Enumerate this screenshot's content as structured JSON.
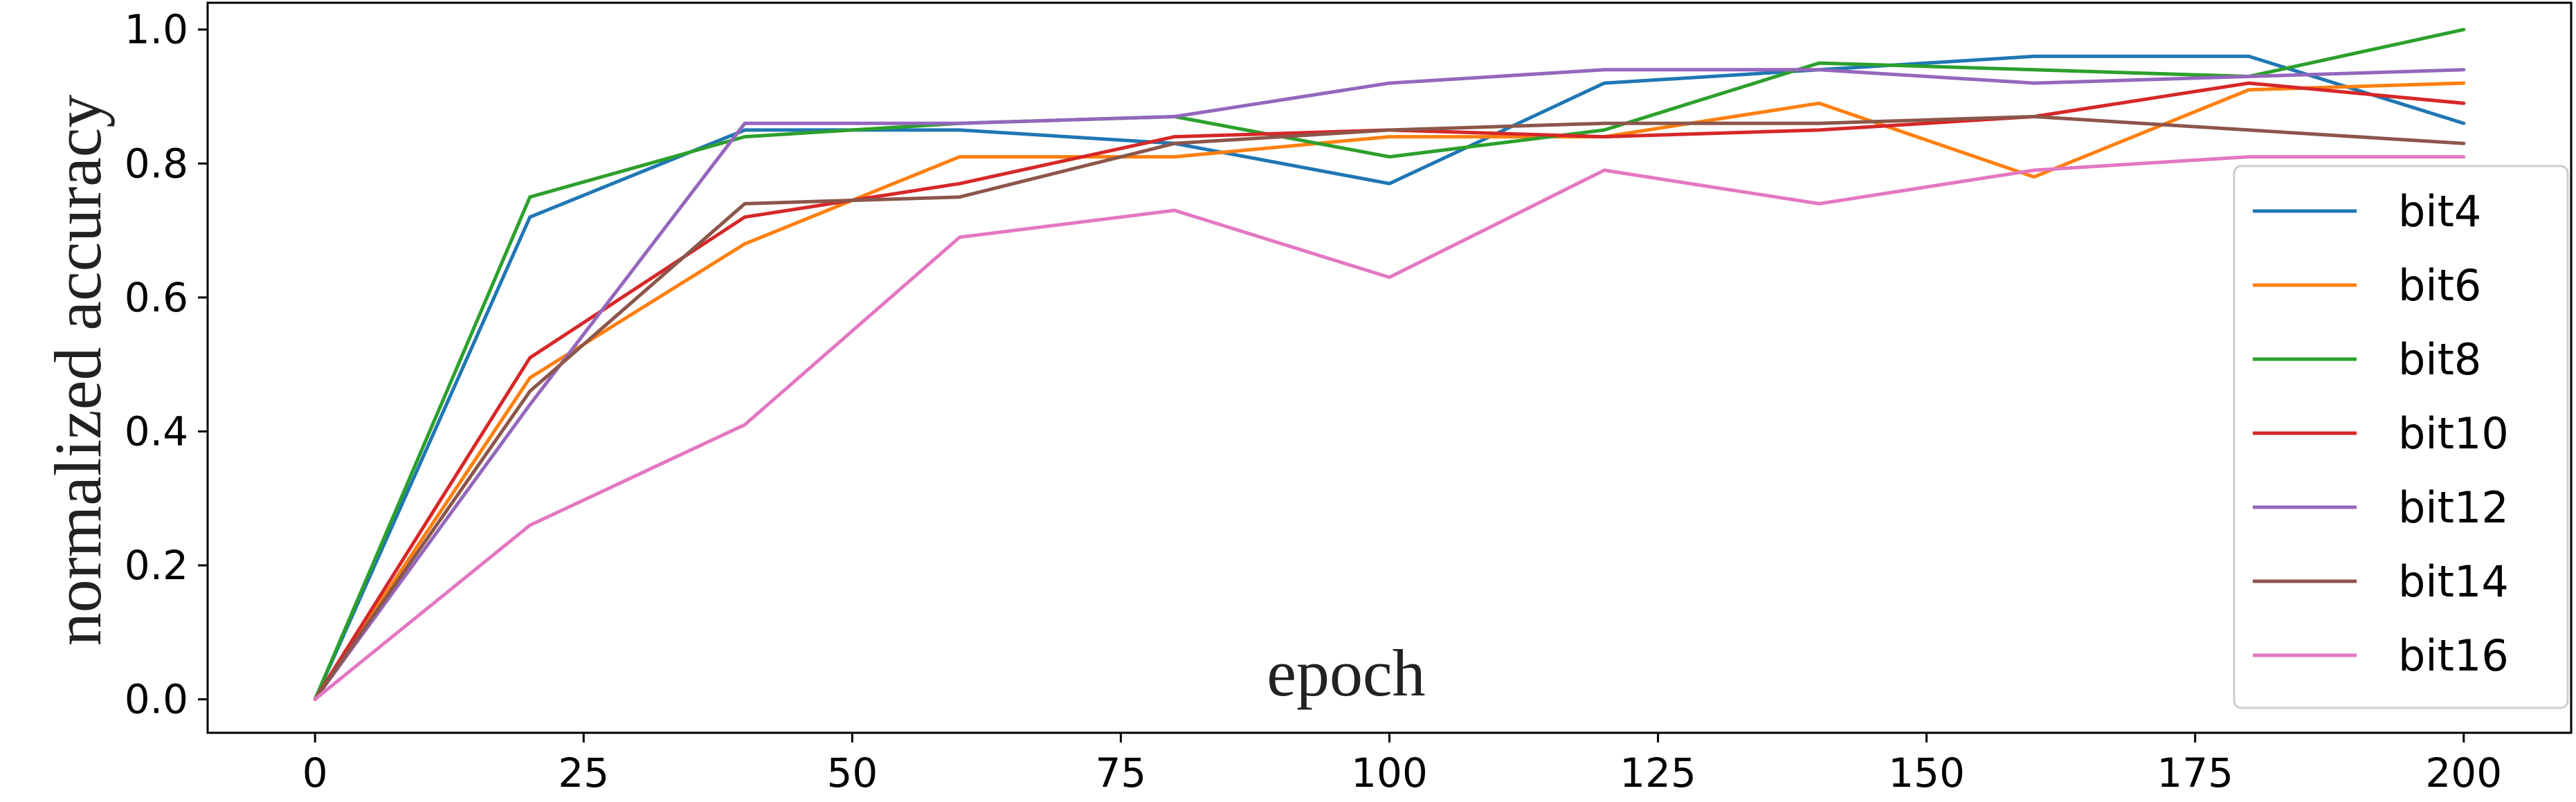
{
  "chart_data": {
    "type": "line",
    "title": "",
    "xlabel": "epoch",
    "ylabel": "normalized accuracy",
    "xlim": [
      -10,
      210
    ],
    "ylim": [
      -0.05,
      1.04
    ],
    "xticks": [
      "0",
      "25",
      "50",
      "75",
      "100",
      "125",
      "150",
      "175",
      "200"
    ],
    "yticks": [
      "0.0",
      "0.2",
      "0.4",
      "0.6",
      "0.8",
      "1.0"
    ],
    "grid": false,
    "legend_position": "right",
    "x": [
      0,
      20,
      40,
      60,
      80,
      100,
      120,
      140,
      160,
      180,
      200
    ],
    "series": [
      {
        "name": "bit4",
        "color": "#1f77b4",
        "values": [
          0.0,
          0.72,
          0.85,
          0.85,
          0.83,
          0.77,
          0.92,
          0.94,
          0.96,
          0.96,
          0.86
        ]
      },
      {
        "name": "bit6",
        "color": "#ff7f0e",
        "values": [
          0.0,
          0.48,
          0.68,
          0.81,
          0.81,
          0.84,
          0.84,
          0.89,
          0.78,
          0.91,
          0.92
        ]
      },
      {
        "name": "bit8",
        "color": "#2ca02c",
        "values": [
          0.0,
          0.75,
          0.84,
          0.86,
          0.87,
          0.81,
          0.85,
          0.95,
          0.94,
          0.93,
          1.0
        ]
      },
      {
        "name": "bit10",
        "color": "#d62728",
        "values": [
          0.0,
          0.51,
          0.72,
          0.77,
          0.84,
          0.85,
          0.84,
          0.85,
          0.87,
          0.92,
          0.89
        ]
      },
      {
        "name": "bit12",
        "color": "#9467bd",
        "values": [
          0.0,
          0.44,
          0.86,
          0.86,
          0.87,
          0.92,
          0.94,
          0.94,
          0.92,
          0.93,
          0.94
        ]
      },
      {
        "name": "bit14",
        "color": "#8c564b",
        "values": [
          0.0,
          0.46,
          0.74,
          0.75,
          0.83,
          0.85,
          0.86,
          0.86,
          0.87,
          0.85,
          0.83
        ]
      },
      {
        "name": "bit16",
        "color": "#e377c2",
        "values": [
          0.0,
          0.26,
          0.41,
          0.69,
          0.73,
          0.63,
          0.79,
          0.74,
          0.79,
          0.81,
          0.81
        ]
      }
    ]
  }
}
